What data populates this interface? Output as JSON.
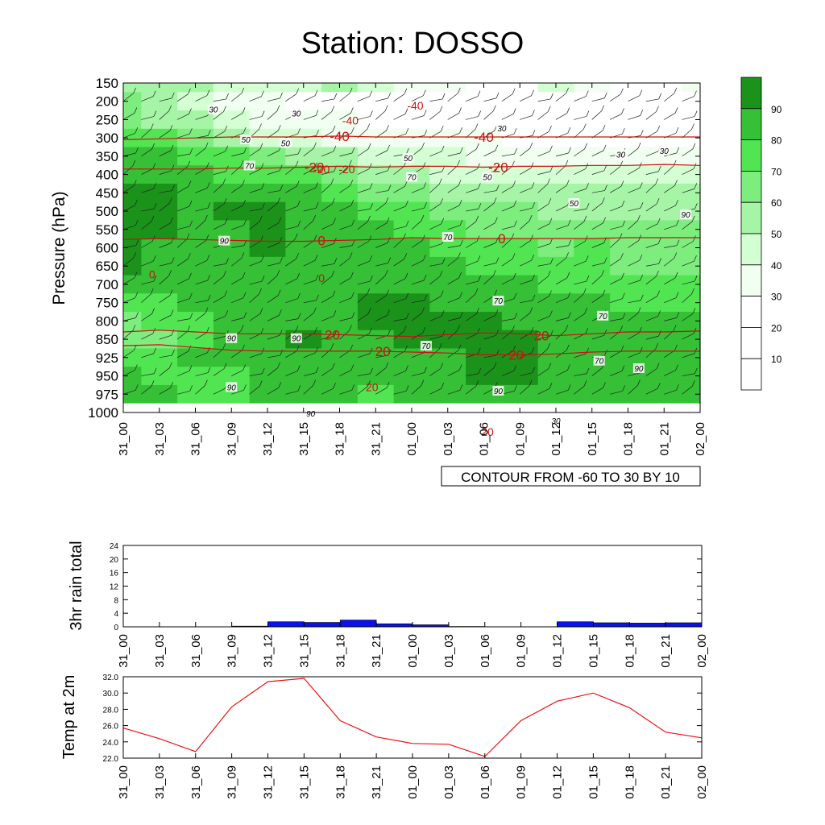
{
  "title": "Station: DOSSO",
  "time_labels": [
    "31_00",
    "31_03",
    "31_06",
    "31_09",
    "31_12",
    "31_15",
    "31_18",
    "31_21",
    "01_00",
    "01_03",
    "01_06",
    "01_09",
    "01_12",
    "01_15",
    "01_18",
    "01_21",
    "02_00"
  ],
  "colors": {
    "rh": [
      "#ffffff",
      "#ffffff",
      "#ffffff",
      "#f0fff0",
      "#d3ffd3",
      "#a6f5a6",
      "#7ded7d",
      "#52e552",
      "#36c036",
      "#1b931b"
    ],
    "temp_contour": "#cc1111",
    "rain_bar": "#0a10ee",
    "temp_line": "#ee1111"
  },
  "chart_data": [
    {
      "type": "heatmap",
      "name": "rh_cross_section",
      "title": "Station: DOSSO",
      "ylabel": "Pressure (hPa)",
      "ylim": [
        1000,
        150
      ],
      "y_ticks": [
        "150",
        "200",
        "250",
        "300",
        "350",
        "400",
        "450",
        "500",
        "550",
        "600",
        "650",
        "700",
        "750",
        "800",
        "850",
        "925",
        "950",
        "975",
        "1000"
      ],
      "x_ticks": [
        "31_00",
        "31_03",
        "31_06",
        "31_09",
        "31_12",
        "31_15",
        "31_18",
        "31_21",
        "01_00",
        "01_03",
        "01_06",
        "01_09",
        "01_12",
        "01_15",
        "01_18",
        "01_21",
        "02_00"
      ],
      "colorbar": {
        "levels": [
          "10",
          "20",
          "30",
          "40",
          "50",
          "60",
          "70",
          "80",
          "90"
        ],
        "colors": [
          "#ffffff",
          "#ffffff",
          "#ffffff",
          "#f0fff0",
          "#d3ffd3",
          "#a6f5a6",
          "#7ded7d",
          "#52e552",
          "#36c036",
          "#1b931b"
        ]
      },
      "rh_grid": [
        [
          50,
          50,
          50,
          40,
          40,
          40,
          50,
          40,
          35,
          30,
          25,
          25,
          40,
          30,
          25,
          25,
          30
        ],
        [
          60,
          50,
          40,
          30,
          30,
          25,
          25,
          25,
          25,
          25,
          25,
          25,
          25,
          25,
          25,
          25,
          25
        ],
        [
          60,
          55,
          50,
          45,
          30,
          30,
          30,
          25,
          25,
          25,
          25,
          25,
          25,
          25,
          25,
          25,
          25
        ],
        [
          70,
          70,
          60,
          55,
          45,
          40,
          35,
          30,
          30,
          30,
          30,
          25,
          25,
          25,
          25,
          25,
          25
        ],
        [
          80,
          80,
          72,
          70,
          65,
          55,
          50,
          45,
          40,
          40,
          35,
          35,
          35,
          35,
          35,
          30,
          30
        ],
        [
          85,
          85,
          80,
          75,
          75,
          72,
          65,
          55,
          50,
          45,
          40,
          40,
          40,
          40,
          40,
          40,
          40
        ],
        [
          92,
          90,
          85,
          82,
          80,
          80,
          75,
          65,
          60,
          55,
          50,
          50,
          50,
          50,
          50,
          50,
          50
        ],
        [
          95,
          92,
          88,
          90,
          92,
          85,
          82,
          75,
          70,
          68,
          62,
          60,
          58,
          58,
          58,
          58,
          55
        ],
        [
          95,
          90,
          86,
          88,
          92,
          85,
          82,
          80,
          75,
          72,
          68,
          65,
          60,
          62,
          62,
          62,
          60
        ],
        [
          92,
          88,
          85,
          85,
          90,
          85,
          84,
          82,
          80,
          75,
          72,
          70,
          68,
          70,
          65,
          65,
          62
        ],
        [
          90,
          85,
          85,
          85,
          85,
          88,
          86,
          85,
          85,
          80,
          76,
          74,
          70,
          72,
          68,
          65,
          65
        ],
        [
          80,
          80,
          86,
          86,
          85,
          86,
          86,
          88,
          88,
          85,
          82,
          80,
          78,
          75,
          72,
          70,
          70
        ],
        [
          70,
          75,
          82,
          84,
          85,
          85,
          86,
          90,
          92,
          88,
          85,
          82,
          80,
          80,
          78,
          75,
          75
        ],
        [
          60,
          70,
          78,
          80,
          84,
          85,
          88,
          92,
          92,
          90,
          90,
          85,
          84,
          82,
          80,
          80,
          80
        ],
        [
          60,
          65,
          75,
          80,
          84,
          90,
          88,
          88,
          90,
          90,
          92,
          90,
          86,
          85,
          84,
          82,
          82
        ],
        [
          70,
          75,
          80,
          80,
          84,
          86,
          85,
          85,
          86,
          88,
          92,
          92,
          86,
          84,
          82,
          82,
          82
        ],
        [
          80,
          75,
          78,
          78,
          80,
          84,
          82,
          80,
          85,
          86,
          90,
          90,
          84,
          82,
          80,
          80,
          80
        ],
        [
          85,
          80,
          75,
          78,
          80,
          82,
          82,
          78,
          85,
          86,
          88,
          88,
          82,
          80,
          80,
          80,
          80
        ],
        [
          85,
          82,
          78,
          75,
          78,
          82,
          82,
          78,
          85,
          86,
          88,
          88,
          82,
          80,
          80,
          80,
          80
        ]
      ],
      "temp_contours": [
        {
          "label": "-40",
          "rows": [
            3.1,
            3.05,
            3.0,
            2.95,
            2.95,
            2.95,
            2.9,
            2.95,
            2.95,
            2.95,
            2.95,
            2.95,
            2.95,
            2.95,
            2.95,
            2.95,
            2.95
          ]
        },
        {
          "label": "-20",
          "rows": [
            4.7,
            4.7,
            4.7,
            4.65,
            4.65,
            4.6,
            4.55,
            4.6,
            4.55,
            4.55,
            4.6,
            4.55,
            4.55,
            4.5,
            4.5,
            4.45,
            4.5
          ]
        },
        {
          "label": "0",
          "rows": [
            8.55,
            8.5,
            8.55,
            8.6,
            8.65,
            8.65,
            8.6,
            8.55,
            8.45,
            8.5,
            8.5,
            8.5,
            8.5,
            8.5,
            8.45,
            8.45,
            8.45
          ]
        },
        {
          "label": "20",
          "rows": [
            13.6,
            13.5,
            13.6,
            13.7,
            13.7,
            13.7,
            13.75,
            13.8,
            13.85,
            13.75,
            13.65,
            13.7,
            13.8,
            13.7,
            13.6,
            13.6,
            13.55
          ]
        },
        {
          "label": "20",
          "rows": [
            14.35,
            14.3,
            14.45,
            14.6,
            14.65,
            14.65,
            14.65,
            14.65,
            14.7,
            14.75,
            14.85,
            14.85,
            14.8,
            14.7,
            14.65,
            14.65,
            14.65
          ]
        }
      ],
      "contour_labels": [
        "30",
        "30",
        "-40",
        "-40",
        "50",
        "50",
        "30",
        "30",
        "70",
        "-20",
        "-20",
        "70",
        "50",
        "50",
        "50",
        "30",
        "90",
        "90",
        "0",
        "70",
        "0",
        "70",
        "70",
        "90",
        "90",
        "70",
        "70",
        "90",
        "90",
        "20",
        "90",
        "90",
        "20",
        "30"
      ],
      "annotation": "CONTOUR FROM -60 TO 30 BY 10"
    },
    {
      "type": "bar",
      "name": "rain",
      "ylabel": "3hr rain total",
      "ylim": [
        0,
        24
      ],
      "y_ticks": [
        "0",
        "4",
        "8",
        "12",
        "16",
        "20",
        "24"
      ],
      "categories": [
        "31_00",
        "31_03",
        "31_06",
        "31_09",
        "31_12",
        "31_15",
        "31_18",
        "31_21",
        "01_00",
        "01_03",
        "01_06",
        "01_09",
        "01_12",
        "01_15",
        "01_18",
        "01_21"
      ],
      "values": [
        0,
        0,
        0,
        0.2,
        1.5,
        1.3,
        2.0,
        0.9,
        0.6,
        0.1,
        0,
        0,
        1.5,
        1.2,
        1.1,
        1.2
      ]
    },
    {
      "type": "line",
      "name": "temperature",
      "ylabel": "Temp at 2m",
      "ylim": [
        22,
        32
      ],
      "y_ticks": [
        "22.0",
        "24.0",
        "26.0",
        "28.0",
        "30.0",
        "32.0"
      ],
      "x": [
        "31_00",
        "31_03",
        "31_06",
        "31_09",
        "31_12",
        "31_15",
        "31_18",
        "31_21",
        "01_00",
        "01_03",
        "01_06",
        "01_09",
        "01_12",
        "01_15",
        "01_18",
        "01_21",
        "02_00"
      ],
      "values": [
        25.7,
        24.4,
        22.8,
        28.3,
        31.4,
        31.8,
        26.6,
        24.6,
        23.8,
        23.7,
        22.2,
        26.6,
        29.0,
        30.0,
        28.2,
        25.2,
        24.5
      ]
    }
  ]
}
